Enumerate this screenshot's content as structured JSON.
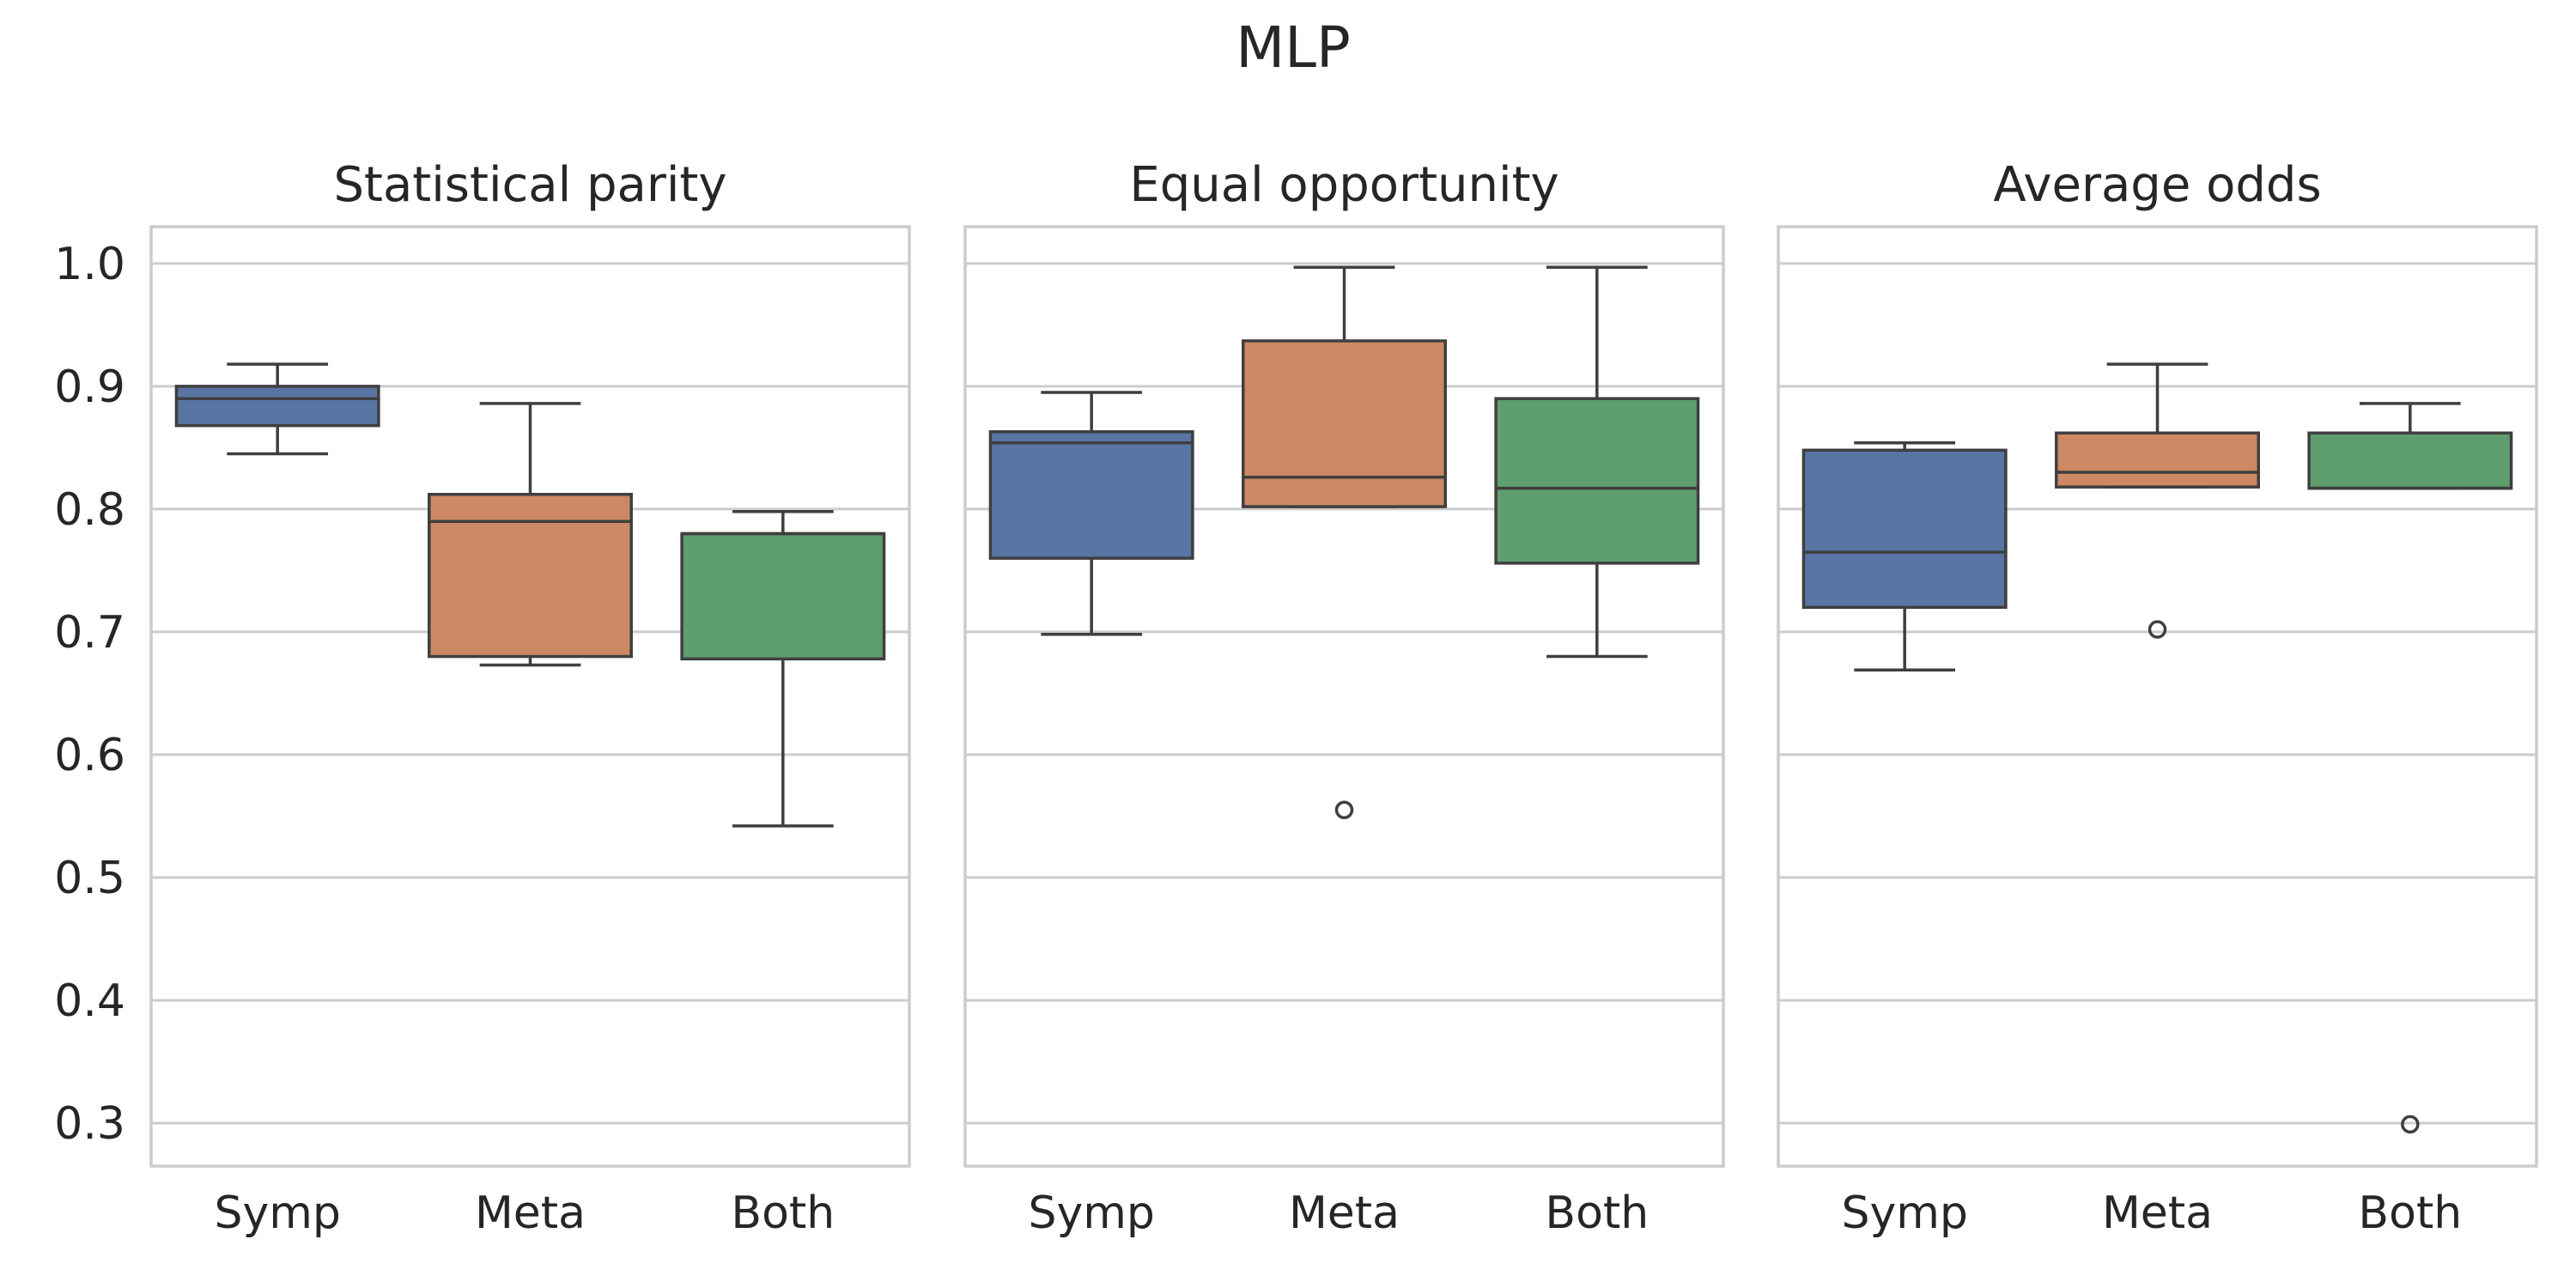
{
  "chart_data": {
    "type": "box",
    "title": "MLP",
    "categories": [
      "Symp",
      "Meta",
      "Both"
    ],
    "ylim": [
      0.265,
      1.03
    ],
    "yticks": [
      0.3,
      0.4,
      0.5,
      0.6,
      0.7,
      0.8,
      0.9,
      1.0
    ],
    "ytick_labels": [
      "0.3",
      "0.4",
      "0.5",
      "0.6",
      "0.7",
      "0.8",
      "0.9",
      "1.0"
    ],
    "grid": true,
    "shared_y": true,
    "colors": {
      "Symp": "#5875a4",
      "Meta": "#cc8963",
      "Both": "#5f9e6e",
      "edge": "#3f3f3f",
      "grid": "#cccccc",
      "frame": "#cccccc"
    },
    "panels": [
      {
        "title": "Statistical parity",
        "boxes": [
          {
            "category": "Symp",
            "whisker_low": 0.845,
            "q1": 0.868,
            "median": 0.89,
            "q3": 0.9,
            "whisker_high": 0.918,
            "outliers": []
          },
          {
            "category": "Meta",
            "whisker_low": 0.673,
            "q1": 0.68,
            "median": 0.79,
            "q3": 0.812,
            "whisker_high": 0.886,
            "outliers": []
          },
          {
            "category": "Both",
            "whisker_low": 0.542,
            "q1": 0.678,
            "median": 0.78,
            "q3": 0.78,
            "whisker_high": 0.798,
            "outliers": []
          }
        ]
      },
      {
        "title": "Equal opportunity",
        "boxes": [
          {
            "category": "Symp",
            "whisker_low": 0.698,
            "q1": 0.76,
            "median": 0.854,
            "q3": 0.863,
            "whisker_high": 0.895,
            "outliers": []
          },
          {
            "category": "Meta",
            "whisker_low": 0.802,
            "q1": 0.802,
            "median": 0.826,
            "q3": 0.937,
            "whisker_high": 0.997,
            "outliers": [
              0.555
            ]
          },
          {
            "category": "Both",
            "whisker_low": 0.68,
            "q1": 0.756,
            "median": 0.817,
            "q3": 0.89,
            "whisker_high": 0.997,
            "outliers": []
          }
        ]
      },
      {
        "title": "Average odds",
        "boxes": [
          {
            "category": "Symp",
            "whisker_low": 0.669,
            "q1": 0.72,
            "median": 0.765,
            "q3": 0.848,
            "whisker_high": 0.854,
            "outliers": []
          },
          {
            "category": "Meta",
            "whisker_low": 0.818,
            "q1": 0.818,
            "median": 0.83,
            "q3": 0.862,
            "whisker_high": 0.918,
            "outliers": [
              0.702
            ]
          },
          {
            "category": "Both",
            "whisker_low": 0.817,
            "q1": 0.817,
            "median": 0.817,
            "q3": 0.862,
            "whisker_high": 0.886,
            "outliers": [
              0.299
            ]
          }
        ]
      }
    ]
  }
}
